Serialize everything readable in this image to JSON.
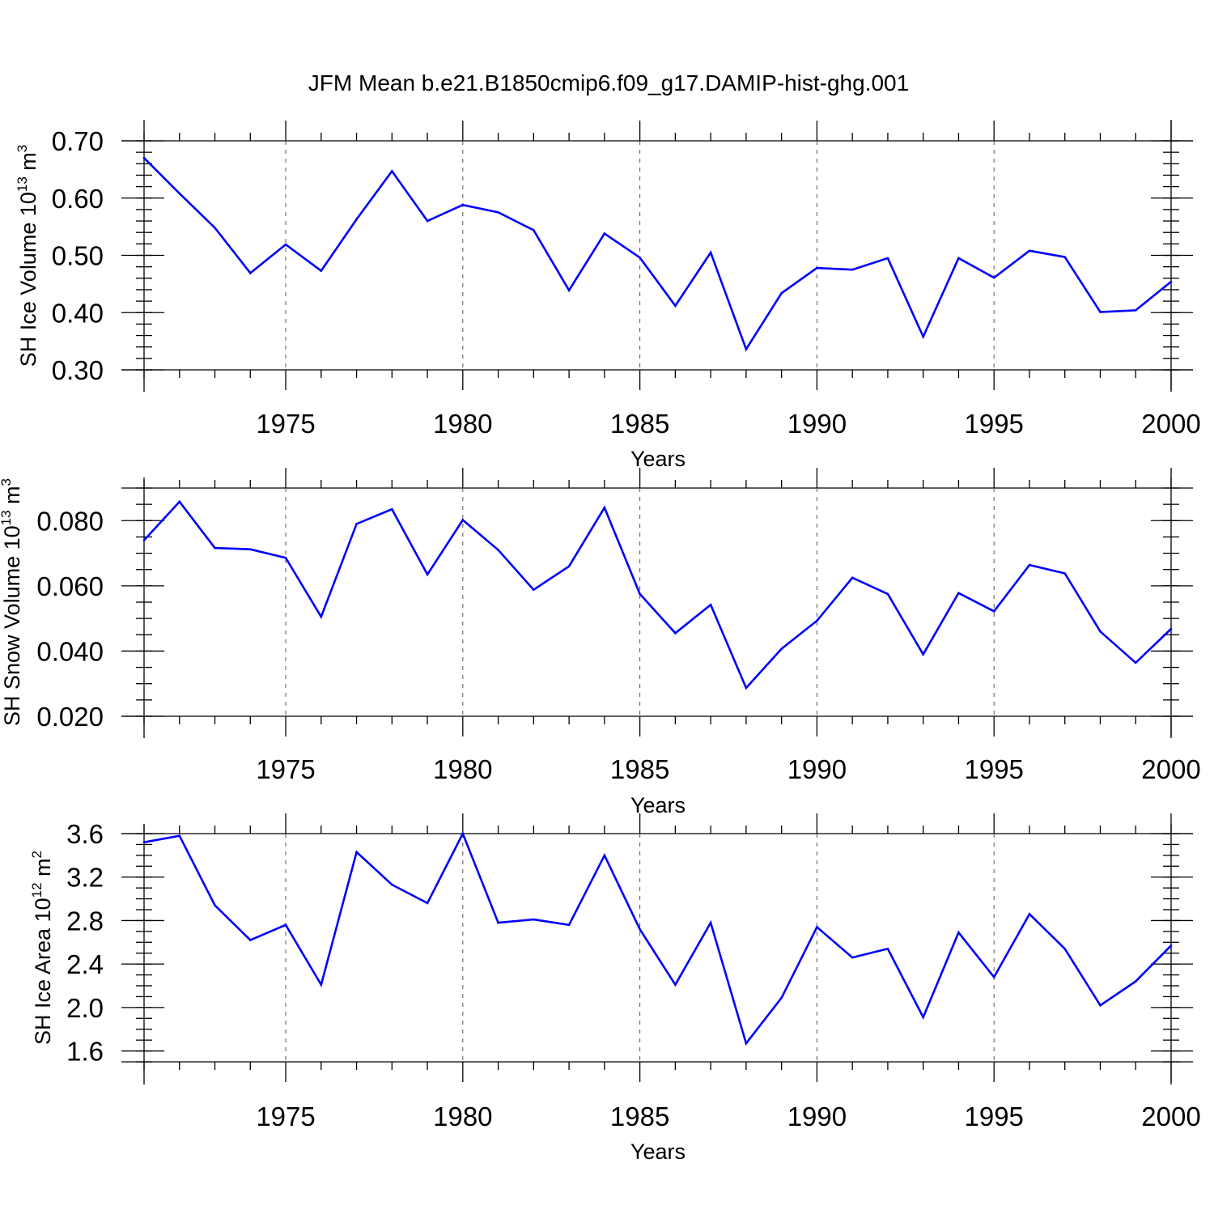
{
  "title": "JFM Mean b.e21.B1850cmip6.f09_g17.DAMIP-hist-ghg.001",
  "line_color": "#0000ff",
  "chart_data": [
    {
      "type": "line",
      "xlabel": "Years",
      "ylabel": {
        "main": "SH Ice Volume 10",
        "sup": "13",
        "unit": " m",
        "unit_sup": "3"
      },
      "xlim": [
        1971,
        2000
      ],
      "ylim": [
        0.3,
        0.7
      ],
      "x_ticks": [
        1975,
        1980,
        1985,
        1990,
        1995,
        2000
      ],
      "y_ticks": [
        0.3,
        0.4,
        0.5,
        0.6,
        0.7
      ],
      "y_tick_labels": [
        "0.30",
        "0.40",
        "0.50",
        "0.60",
        "0.70"
      ],
      "y_minor_step": 0.02,
      "grid": "dashed vertical at major x ticks",
      "x": [
        1971,
        1972,
        1973,
        1974,
        1975,
        1976,
        1977,
        1978,
        1979,
        1980,
        1981,
        1982,
        1983,
        1984,
        1985,
        1986,
        1987,
        1988,
        1989,
        1990,
        1991,
        1992,
        1993,
        1994,
        1995,
        1996,
        1997,
        1998,
        1999,
        2000
      ],
      "values": [
        0.67,
        0.608,
        0.548,
        0.469,
        0.519,
        0.473,
        0.563,
        0.647,
        0.56,
        0.588,
        0.575,
        0.544,
        0.439,
        0.538,
        0.496,
        0.412,
        0.505,
        0.336,
        0.434,
        0.478,
        0.475,
        0.495,
        0.358,
        0.495,
        0.461,
        0.508,
        0.497,
        0.401,
        0.404,
        0.454
      ]
    },
    {
      "type": "line",
      "xlabel": "Years",
      "ylabel": {
        "main": "SH Snow Volume 10",
        "sup": "13",
        "unit": " m",
        "unit_sup": "3"
      },
      "xlim": [
        1971,
        2000
      ],
      "ylim": [
        0.02,
        0.09
      ],
      "x_ticks": [
        1975,
        1980,
        1985,
        1990,
        1995,
        2000
      ],
      "y_ticks": [
        0.02,
        0.04,
        0.06,
        0.08
      ],
      "y_tick_labels": [
        "0.020",
        "0.040",
        "0.060",
        "0.080"
      ],
      "y_minor_step": 0.005,
      "grid": "dashed vertical at major x ticks",
      "x": [
        1971,
        1972,
        1973,
        1974,
        1975,
        1976,
        1977,
        1978,
        1979,
        1980,
        1981,
        1982,
        1983,
        1984,
        1985,
        1986,
        1987,
        1988,
        1989,
        1990,
        1991,
        1992,
        1993,
        1994,
        1995,
        1996,
        1997,
        1998,
        1999,
        2000
      ],
      "values": [
        0.074,
        0.0858,
        0.0716,
        0.0712,
        0.0686,
        0.0505,
        0.079,
        0.0835,
        0.0635,
        0.0802,
        0.071,
        0.0588,
        0.066,
        0.084,
        0.0575,
        0.0455,
        0.0542,
        0.0287,
        0.0407,
        0.0493,
        0.0625,
        0.0575,
        0.039,
        0.0578,
        0.0522,
        0.0664,
        0.0638,
        0.046,
        0.0364,
        0.0468
      ]
    },
    {
      "type": "line",
      "xlabel": "Years",
      "ylabel": {
        "main": "SH Ice Area 10",
        "sup": "12",
        "unit": " m",
        "unit_sup": "2"
      },
      "xlim": [
        1971,
        2000
      ],
      "ylim": [
        1.5,
        3.6
      ],
      "x_ticks": [
        1975,
        1980,
        1985,
        1990,
        1995,
        2000
      ],
      "y_ticks": [
        1.6,
        2.0,
        2.4,
        2.8,
        3.2,
        3.6
      ],
      "y_tick_labels": [
        "1.6",
        "2.0",
        "2.4",
        "2.8",
        "3.2",
        "3.6"
      ],
      "y_minor_step": 0.1,
      "grid": "dashed vertical at major x ticks",
      "x": [
        1971,
        1972,
        1973,
        1974,
        1975,
        1976,
        1977,
        1978,
        1979,
        1980,
        1981,
        1982,
        1983,
        1984,
        1985,
        1986,
        1987,
        1988,
        1989,
        1990,
        1991,
        1992,
        1993,
        1994,
        1995,
        1996,
        1997,
        1998,
        1999,
        2000
      ],
      "values": [
        3.52,
        3.58,
        2.94,
        2.62,
        2.76,
        2.21,
        3.43,
        3.13,
        2.96,
        3.6,
        2.78,
        2.81,
        2.76,
        3.4,
        2.72,
        2.21,
        2.78,
        1.67,
        2.09,
        2.74,
        2.46,
        2.54,
        1.91,
        2.69,
        2.28,
        2.86,
        2.54,
        2.02,
        2.24,
        2.57
      ]
    }
  ]
}
